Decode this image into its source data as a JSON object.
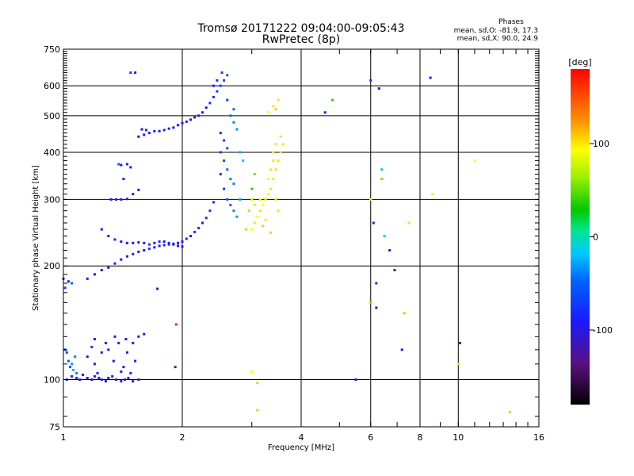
{
  "title_line1": "Tromsø 20171222 09:04:00-09:05:43",
  "title_line2": "RwPretec (8p)",
  "stats": {
    "heading": "Phases",
    "line_o": "mean, sd,O: -81.9, 17.3",
    "line_x": "mean, sd,X:  90.0, 24.9"
  },
  "colorbar": {
    "label": "[deg]",
    "ticks": [
      {
        "value": 100,
        "label": "100"
      },
      {
        "value": 0,
        "label": "0"
      },
      {
        "value": -100,
        "label": "-100"
      }
    ],
    "range": [
      -180,
      180
    ]
  },
  "chart_data": {
    "type": "scatter",
    "xlabel": "Frequency [MHz]",
    "ylabel": "Stationary phase Virtual Height [km]",
    "xscale": "log",
    "yscale": "log",
    "xlim": [
      1,
      16
    ],
    "ylim": [
      75,
      750
    ],
    "xticks": [
      {
        "value": 1,
        "label": "1"
      },
      {
        "value": 2,
        "label": "2"
      },
      {
        "value": 4,
        "label": "4"
      },
      {
        "value": 6,
        "label": "6"
      },
      {
        "value": 8,
        "label": "8"
      },
      {
        "value": 10,
        "label": "10"
      },
      {
        "value": 16,
        "label": "16"
      }
    ],
    "yticks": [
      {
        "value": 75,
        "label": "75"
      },
      {
        "value": 100,
        "label": "100"
      },
      {
        "value": 200,
        "label": "200"
      },
      {
        "value": 300,
        "label": "300"
      },
      {
        "value": 400,
        "label": "400"
      },
      {
        "value": 500,
        "label": "500"
      },
      {
        "value": 600,
        "label": "600"
      },
      {
        "value": 750,
        "label": "750"
      }
    ],
    "grid": true,
    "color_variable": "phase_deg",
    "points": [
      [
        1.02,
        100,
        -100
      ],
      [
        1.05,
        102,
        -95
      ],
      [
        1.08,
        101,
        -105
      ],
      [
        1.1,
        100,
        -100
      ],
      [
        1.12,
        103,
        -98
      ],
      [
        1.15,
        101,
        -102
      ],
      [
        1.18,
        100,
        -100
      ],
      [
        1.2,
        102,
        -95
      ],
      [
        1.23,
        101,
        -105
      ],
      [
        1.25,
        100,
        -100
      ],
      [
        1.28,
        99,
        -100
      ],
      [
        1.3,
        101,
        -100
      ],
      [
        1.33,
        102,
        -95
      ],
      [
        1.36,
        100,
        -100
      ],
      [
        1.4,
        99,
        -105
      ],
      [
        1.43,
        100,
        -100
      ],
      [
        1.46,
        101,
        -100
      ],
      [
        1.5,
        99,
        -100
      ],
      [
        1.55,
        100,
        -95
      ],
      [
        1.03,
        112,
        -60
      ],
      [
        1.05,
        110,
        -40
      ],
      [
        1.07,
        115,
        -50
      ],
      [
        1.04,
        108,
        -70
      ],
      [
        1.02,
        118,
        -80
      ],
      [
        1.06,
        106,
        -30
      ],
      [
        1.08,
        104,
        -50
      ],
      [
        1.01,
        120,
        -70
      ],
      [
        1.15,
        115,
        -100
      ],
      [
        1.2,
        110,
        -100
      ],
      [
        1.25,
        118,
        -95
      ],
      [
        1.28,
        125,
        -100
      ],
      [
        1.3,
        120,
        -100
      ],
      [
        1.34,
        112,
        -105
      ],
      [
        1.38,
        125,
        -95
      ],
      [
        1.42,
        108,
        -100
      ],
      [
        1.45,
        118,
        -100
      ],
      [
        1.5,
        125,
        -100
      ],
      [
        1.55,
        130,
        -110
      ],
      [
        1.2,
        128,
        -100
      ],
      [
        1.35,
        130,
        -100
      ],
      [
        1.48,
        104,
        -100
      ],
      [
        1.22,
        104,
        -105
      ],
      [
        1.52,
        112,
        -110
      ],
      [
        1.18,
        122,
        -90
      ],
      [
        1.4,
        105,
        -100
      ],
      [
        1.44,
        128,
        -100
      ],
      [
        1.0,
        185,
        -100
      ],
      [
        1.03,
        182,
        -100
      ],
      [
        1.05,
        180,
        -60
      ],
      [
        1.01,
        175,
        -80
      ],
      [
        1.15,
        185,
        -100
      ],
      [
        1.2,
        190,
        -100
      ],
      [
        1.25,
        195,
        -100
      ],
      [
        1.3,
        198,
        -100
      ],
      [
        1.35,
        203,
        -100
      ],
      [
        1.4,
        208,
        -100
      ],
      [
        1.45,
        212,
        -100
      ],
      [
        1.5,
        215,
        -100
      ],
      [
        1.55,
        218,
        -100
      ],
      [
        1.6,
        220,
        -100
      ],
      [
        1.65,
        222,
        -90
      ],
      [
        1.7,
        224,
        -100
      ],
      [
        1.75,
        226,
        -100
      ],
      [
        1.8,
        227,
        -90
      ],
      [
        1.85,
        228,
        -100
      ],
      [
        1.9,
        229,
        -100
      ],
      [
        1.95,
        230,
        -100
      ],
      [
        2.0,
        232,
        -100
      ],
      [
        2.05,
        236,
        -90
      ],
      [
        2.1,
        240,
        -100
      ],
      [
        2.15,
        246,
        -90
      ],
      [
        2.2,
        252,
        -90
      ],
      [
        2.25,
        260,
        -100
      ],
      [
        2.3,
        268,
        -90
      ],
      [
        2.35,
        280,
        -90
      ],
      [
        2.4,
        295,
        -90
      ],
      [
        1.25,
        250,
        -100
      ],
      [
        1.3,
        240,
        -100
      ],
      [
        1.35,
        235,
        -100
      ],
      [
        1.4,
        232,
        -100
      ],
      [
        1.45,
        230,
        -100
      ],
      [
        1.5,
        230,
        -100
      ],
      [
        1.55,
        231,
        -100
      ],
      [
        1.6,
        230,
        -100
      ],
      [
        1.65,
        228,
        -90
      ],
      [
        1.7,
        230,
        -100
      ],
      [
        1.75,
        232,
        -90
      ],
      [
        1.8,
        232,
        -100
      ],
      [
        1.85,
        230,
        -100
      ],
      [
        1.9,
        228,
        -100
      ],
      [
        1.95,
        226,
        -100
      ],
      [
        2.0,
        225,
        -100
      ],
      [
        1.32,
        300,
        -100
      ],
      [
        1.36,
        300,
        -100
      ],
      [
        1.4,
        300,
        -100
      ],
      [
        1.45,
        301,
        -100
      ],
      [
        1.5,
        310,
        -100
      ],
      [
        1.55,
        318,
        -100
      ],
      [
        1.4,
        370,
        -100
      ],
      [
        1.45,
        372,
        -100
      ],
      [
        1.48,
        365,
        -100
      ],
      [
        1.42,
        340,
        -100
      ],
      [
        1.38,
        372,
        -60
      ],
      [
        1.55,
        440,
        -100
      ],
      [
        1.6,
        445,
        -100
      ],
      [
        1.65,
        450,
        -100
      ],
      [
        1.7,
        455,
        -100
      ],
      [
        1.75,
        455,
        -100
      ],
      [
        1.8,
        458,
        -100
      ],
      [
        1.85,
        462,
        -100
      ],
      [
        1.9,
        465,
        -100
      ],
      [
        1.95,
        472,
        -100
      ],
      [
        2.0,
        478,
        -100
      ],
      [
        2.05,
        482,
        -100
      ],
      [
        2.1,
        488,
        -100
      ],
      [
        2.15,
        495,
        -100
      ],
      [
        2.2,
        500,
        -100
      ],
      [
        2.25,
        510,
        -100
      ],
      [
        2.3,
        525,
        -100
      ],
      [
        1.58,
        460,
        -100
      ],
      [
        1.62,
        458,
        -100
      ],
      [
        2.35,
        540,
        -90
      ],
      [
        2.4,
        560,
        -90
      ],
      [
        2.45,
        580,
        -80
      ],
      [
        2.5,
        600,
        -80
      ],
      [
        2.55,
        620,
        -70
      ],
      [
        2.6,
        640,
        -70
      ],
      [
        2.45,
        620,
        -90
      ],
      [
        2.52,
        650,
        -80
      ],
      [
        2.4,
        600,
        -100
      ],
      [
        2.5,
        400,
        -80
      ],
      [
        2.55,
        380,
        -70
      ],
      [
        2.6,
        360,
        -60
      ],
      [
        2.65,
        340,
        -50
      ],
      [
        2.7,
        330,
        -50
      ],
      [
        2.5,
        350,
        -90
      ],
      [
        2.55,
        320,
        -80
      ],
      [
        2.6,
        300,
        -70
      ],
      [
        2.65,
        290,
        -60
      ],
      [
        2.7,
        280,
        -50
      ],
      [
        2.75,
        270,
        -40
      ],
      [
        2.5,
        450,
        -90
      ],
      [
        2.55,
        430,
        -80
      ],
      [
        2.6,
        410,
        -70
      ],
      [
        2.65,
        500,
        -60
      ],
      [
        2.7,
        480,
        -50
      ],
      [
        2.75,
        460,
        -40
      ],
      [
        2.8,
        400,
        -30
      ],
      [
        2.85,
        380,
        -20
      ],
      [
        2.6,
        550,
        -80
      ],
      [
        2.7,
        520,
        -60
      ],
      [
        2.8,
        300,
        -30
      ],
      [
        3.0,
        250,
        100
      ],
      [
        3.05,
        260,
        110
      ],
      [
        3.1,
        270,
        100
      ],
      [
        3.15,
        280,
        110
      ],
      [
        3.2,
        290,
        100
      ],
      [
        3.25,
        300,
        110
      ],
      [
        3.3,
        310,
        100
      ],
      [
        3.35,
        320,
        110
      ],
      [
        3.4,
        340,
        110
      ],
      [
        3.45,
        360,
        110
      ],
      [
        3.5,
        380,
        110
      ],
      [
        3.55,
        400,
        110
      ],
      [
        3.6,
        420,
        110
      ],
      [
        3.3,
        340,
        100
      ],
      [
        3.35,
        360,
        110
      ],
      [
        3.4,
        380,
        110
      ],
      [
        3.45,
        300,
        110
      ],
      [
        3.5,
        280,
        110
      ],
      [
        3.2,
        255,
        120
      ],
      [
        3.25,
        265,
        110
      ],
      [
        3.35,
        245,
        120
      ],
      [
        3.4,
        400,
        100
      ],
      [
        3.45,
        420,
        110
      ],
      [
        3.05,
        290,
        80
      ],
      [
        3.15,
        300,
        90
      ],
      [
        3.3,
        510,
        100
      ],
      [
        3.4,
        530,
        110
      ],
      [
        3.5,
        550,
        110
      ],
      [
        3.45,
        520,
        120
      ],
      [
        3.55,
        440,
        110
      ],
      [
        2.95,
        280,
        60
      ],
      [
        2.9,
        250,
        70
      ],
      [
        3.0,
        300,
        80
      ],
      [
        3.0,
        320,
        30
      ],
      [
        3.05,
        350,
        50
      ],
      [
        4.6,
        510,
        -100
      ],
      [
        4.8,
        550,
        30
      ],
      [
        6.0,
        620,
        -90
      ],
      [
        6.3,
        590,
        -100
      ],
      [
        6.4,
        360,
        -20
      ],
      [
        6.4,
        340,
        50
      ],
      [
        6.0,
        300,
        100
      ],
      [
        6.1,
        260,
        -100
      ],
      [
        6.5,
        240,
        -10
      ],
      [
        6.7,
        220,
        -100
      ],
      [
        7.5,
        260,
        110
      ],
      [
        6.9,
        195,
        -140
      ],
      [
        6.2,
        180,
        -90
      ],
      [
        6.0,
        160,
        50
      ],
      [
        6.2,
        155,
        -100
      ],
      [
        7.3,
        150,
        60
      ],
      [
        7.2,
        120,
        -100
      ],
      [
        10.1,
        125,
        -140
      ],
      [
        10.0,
        110,
        110
      ],
      [
        5.5,
        100,
        -100
      ],
      [
        8.5,
        630,
        -100
      ],
      [
        8.6,
        310,
        90
      ],
      [
        11.0,
        380,
        100
      ],
      [
        13.5,
        82,
        120
      ],
      [
        3.1,
        83,
        120
      ],
      [
        3.1,
        98,
        120
      ],
      [
        3.0,
        105,
        100
      ],
      [
        1.93,
        140,
        170
      ],
      [
        1.92,
        108,
        -140
      ],
      [
        1.6,
        132,
        -100
      ],
      [
        1.73,
        174,
        -140
      ],
      [
        1.48,
        650,
        -80
      ],
      [
        1.52,
        650,
        -100
      ]
    ]
  }
}
